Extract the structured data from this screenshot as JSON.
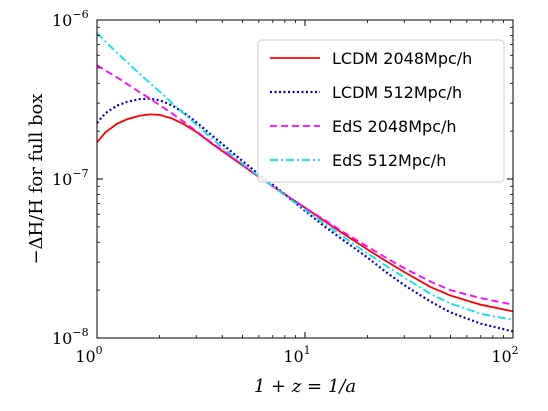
{
  "chart_data": {
    "type": "line",
    "title": "",
    "xlabel": "1 + z = 1/a",
    "ylabel": "−ΔH/H for full box",
    "xscale": "log",
    "yscale": "log",
    "xlim": [
      1,
      100
    ],
    "ylim": [
      1e-08,
      1e-06
    ],
    "grid": false,
    "legend": "top-right",
    "x_ticks": [
      {
        "value": 1,
        "base": "10",
        "exp": "0"
      },
      {
        "value": 10,
        "base": "10",
        "exp": "1"
      },
      {
        "value": 100,
        "base": "10",
        "exp": "2"
      }
    ],
    "y_ticks": [
      {
        "value": 1e-08,
        "base": "10",
        "exp": "−8"
      },
      {
        "value": 1e-07,
        "base": "10",
        "exp": "−7"
      },
      {
        "value": 1e-06,
        "base": "10",
        "exp": "−6"
      }
    ],
    "series": [
      {
        "name": "LCDM 2048Mpc/h",
        "color": "#ff0000",
        "dash": "solid",
        "x": [
          1.0,
          1.1,
          1.25,
          1.4,
          1.6,
          1.8,
          2.0,
          2.3,
          2.6,
          3.0,
          3.5,
          4.0,
          5.0,
          6.0,
          7.0,
          8.0,
          10.0,
          12.5,
          15.0,
          20.0,
          25.0,
          30.0,
          40.0,
          50.0,
          70.0,
          100.0
        ],
        "y": [
          1.7e-07,
          1.97e-07,
          2.23e-07,
          2.38e-07,
          2.5e-07,
          2.55e-07,
          2.53e-07,
          2.4e-07,
          2.22e-07,
          1.98e-07,
          1.7e-07,
          1.5e-07,
          1.22e-07,
          1.03e-07,
          9e-08,
          8e-08,
          6.6e-08,
          5.4e-08,
          4.6e-08,
          3.6e-08,
          3e-08,
          2.6e-08,
          2.1e-08,
          1.85e-08,
          1.62e-08,
          1.47e-08
        ]
      },
      {
        "name": "LCDM 512Mpc/h",
        "color": "#0000cc",
        "dash": "dotted",
        "x": [
          1.0,
          1.1,
          1.25,
          1.4,
          1.6,
          1.8,
          2.0,
          2.3,
          2.6,
          3.0,
          3.5,
          4.0,
          5.0,
          6.0,
          7.0,
          8.0,
          10.0,
          12.5,
          15.0,
          20.0,
          25.0,
          30.0,
          40.0,
          50.0,
          70.0,
          100.0
        ],
        "y": [
          2.25e-07,
          2.6e-07,
          2.9e-07,
          3.06e-07,
          3.18e-07,
          3.2e-07,
          3.13e-07,
          2.9e-07,
          2.62e-07,
          2.28e-07,
          1.92e-07,
          1.66e-07,
          1.3e-07,
          1.07e-07,
          9.2e-08,
          8e-08,
          6.3e-08,
          5e-08,
          4.2e-08,
          3.2e-08,
          2.55e-08,
          2.15e-08,
          1.7e-08,
          1.45e-08,
          1.23e-08,
          1.1e-08
        ]
      },
      {
        "name": "EdS 2048Mpc/h",
        "color": "#ff00ff",
        "dash": "dashed",
        "x": [
          1.0,
          1.1,
          1.25,
          1.4,
          1.6,
          1.8,
          2.0,
          2.3,
          2.6,
          3.0,
          3.5,
          4.0,
          5.0,
          6.0,
          7.0,
          8.0,
          10.0,
          12.5,
          15.0,
          20.0,
          25.0,
          30.0,
          40.0,
          50.0,
          70.0,
          100.0
        ],
        "y": [
          5.2e-07,
          4.8e-07,
          4.35e-07,
          3.95e-07,
          3.52e-07,
          3.2e-07,
          2.92e-07,
          2.58e-07,
          2.3e-07,
          2e-07,
          1.72e-07,
          1.52e-07,
          1.23e-07,
          1.04e-07,
          9e-08,
          8e-08,
          6.6e-08,
          5.5e-08,
          4.7e-08,
          3.75e-08,
          3.15e-08,
          2.75e-08,
          2.27e-08,
          2e-08,
          1.78e-08,
          1.62e-08
        ]
      },
      {
        "name": "EdS 512Mpc/h",
        "color": "#00e5ee",
        "dash": "dashdot",
        "x": [
          1.0,
          1.1,
          1.25,
          1.4,
          1.6,
          1.8,
          2.0,
          2.3,
          2.6,
          3.0,
          3.5,
          4.0,
          5.0,
          6.0,
          7.0,
          8.0,
          10.0,
          12.5,
          15.0,
          20.0,
          25.0,
          30.0,
          40.0,
          50.0,
          70.0,
          100.0
        ],
        "y": [
          8.3e-07,
          7.3e-07,
          6.2e-07,
          5.4e-07,
          4.6e-07,
          4e-07,
          3.55e-07,
          3e-07,
          2.6e-07,
          2.2e-07,
          1.83e-07,
          1.58e-07,
          1.25e-07,
          1.04e-07,
          9e-08,
          7.9e-08,
          6.4e-08,
          5.2e-08,
          4.4e-08,
          3.4e-08,
          2.8e-08,
          2.4e-08,
          1.9e-08,
          1.65e-08,
          1.42e-08,
          1.3e-08
        ]
      }
    ]
  }
}
